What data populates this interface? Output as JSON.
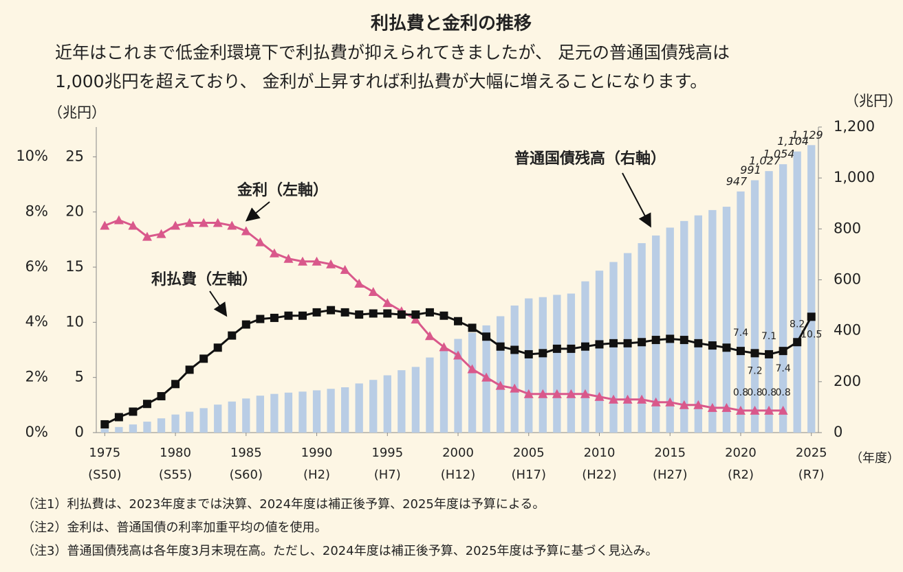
{
  "chart_data": {
    "type": "combo",
    "title": "利払費と金利の推移",
    "subtitle": [
      "近年はこれまで低金利環境下で利払費が抑えられてきましたが、 足元の普通国債残高は",
      "1,000兆円を超えており、 金利が上昇すれば利払費が大幅に増えることになります。"
    ],
    "y_label": "（兆円）",
    "y2_label": "（兆円）",
    "x_label": "（年度）",
    "annotations": [
      "金利（左軸）",
      "利払費（左軸）",
      "普通国債残高（右軸）"
    ],
    "notes": [
      "（注1）利払費は、2023年度までは決算、2024年度は補正後予算、2025年度は予算による。",
      "（注2）金利は、普通国債の利率加重平均の値を使用。",
      "（注3）普通国債残高は各年度3月末現在高。ただし、2024年度は補正後予算、2025年度は予算に基づく見込み。"
    ],
    "x": [
      1975,
      1976,
      1977,
      1978,
      1979,
      1980,
      1981,
      1982,
      1983,
      1984,
      1985,
      1986,
      1987,
      1988,
      1989,
      1990,
      1991,
      1992,
      1993,
      1994,
      1995,
      1996,
      1997,
      1998,
      1999,
      2000,
      2001,
      2002,
      2003,
      2004,
      2005,
      2006,
      2007,
      2008,
      2009,
      2010,
      2011,
      2012,
      2013,
      2014,
      2015,
      2016,
      2017,
      2018,
      2019,
      2020,
      2021,
      2022,
      2023,
      2024,
      2025
    ],
    "xlim": [
      1974.4,
      2025.5
    ],
    "xticks": [
      1975,
      1980,
      1985,
      1990,
      1995,
      2000,
      2005,
      2010,
      2015,
      2020,
      2025
    ],
    "xtick_sublabels": [
      "(S50)",
      "(S55)",
      "(S60)",
      "(H2)",
      "(H7)",
      "(H12)",
      "(H17)",
      "(H22)",
      "(H27)",
      "(R2)",
      "(R7)"
    ],
    "ylim": [
      0,
      27.7
    ],
    "yticks": [
      0,
      5,
      10,
      15,
      20,
      25
    ],
    "y2lim": [
      0,
      1200
    ],
    "y2ticks": [
      0,
      200,
      400,
      600,
      800,
      {
        "value": 1000,
        "label": "1,000"
      },
      {
        "value": 1200,
        "label": "1,200"
      }
    ],
    "y3lim": [
      0,
      11.07
    ],
    "y3ticks": [
      {
        "value": 0,
        "label": "0%"
      },
      {
        "value": 2,
        "label": "2%"
      },
      {
        "value": 4,
        "label": "4%"
      },
      {
        "value": 6,
        "label": "6%"
      },
      {
        "value": 8,
        "label": "8%"
      },
      {
        "value": 10,
        "label": "10%"
      }
    ],
    "series": [
      {
        "name": "普通国債残高（右軸）",
        "kind": "bar",
        "axis": "y2",
        "color": "#b9cde5",
        "values": [
          15,
          22,
          32,
          43,
          56,
          71,
          82,
          96,
          110,
          122,
          134,
          145,
          152,
          157,
          161,
          166,
          172,
          178,
          193,
          207,
          225,
          245,
          258,
          295,
          332,
          368,
          392,
          421,
          457,
          499,
          527,
          532,
          541,
          546,
          594,
          636,
          670,
          705,
          744,
          774,
          805,
          831,
          853,
          874,
          887,
          947,
          991,
          1027,
          1054,
          1104,
          1129
        ],
        "value_labels": [
          null,
          null,
          null,
          null,
          null,
          null,
          null,
          null,
          null,
          null,
          null,
          null,
          null,
          null,
          null,
          null,
          null,
          null,
          null,
          null,
          null,
          null,
          null,
          null,
          null,
          null,
          null,
          null,
          null,
          null,
          null,
          null,
          null,
          null,
          null,
          null,
          null,
          null,
          null,
          null,
          null,
          null,
          null,
          null,
          null,
          "947",
          "991",
          "1,027",
          "1,054",
          "1,104",
          "1,129"
        ]
      },
      {
        "name": "金利（左軸）",
        "kind": "line",
        "axis": "y3",
        "marker": "triangle",
        "color": "#d9588b",
        "values": [
          7.5,
          7.7,
          7.5,
          7.1,
          7.2,
          7.5,
          7.6,
          7.6,
          7.6,
          7.5,
          7.3,
          6.9,
          6.5,
          6.3,
          6.2,
          6.2,
          6.1,
          5.9,
          5.4,
          5.1,
          4.7,
          4.4,
          4.1,
          3.5,
          3.1,
          2.8,
          2.3,
          2.0,
          1.7,
          1.6,
          1.4,
          1.4,
          1.4,
          1.4,
          1.4,
          1.3,
          1.2,
          1.2,
          1.2,
          1.1,
          1.1,
          1.0,
          1.0,
          0.9,
          0.9,
          0.8,
          0.8,
          0.8,
          0.8,
          null,
          null
        ],
        "value_labels": [
          null,
          null,
          null,
          null,
          null,
          null,
          null,
          null,
          null,
          null,
          null,
          null,
          null,
          null,
          null,
          null,
          null,
          null,
          null,
          null,
          null,
          null,
          null,
          null,
          null,
          null,
          null,
          null,
          null,
          null,
          null,
          null,
          null,
          null,
          null,
          null,
          null,
          null,
          null,
          null,
          null,
          null,
          null,
          null,
          null,
          "0.8",
          "0.8",
          "0.8",
          "0.8",
          null,
          null
        ]
      },
      {
        "name": "利払費（左軸）",
        "kind": "line",
        "axis": "y",
        "marker": "square",
        "color": "#111111",
        "values": [
          0.75,
          1.4,
          1.9,
          2.6,
          3.3,
          4.4,
          5.7,
          6.7,
          7.7,
          8.8,
          9.8,
          10.3,
          10.4,
          10.6,
          10.6,
          10.9,
          11.1,
          10.9,
          10.7,
          10.8,
          10.8,
          10.7,
          10.7,
          10.9,
          10.6,
          10.1,
          9.5,
          8.7,
          7.8,
          7.5,
          7.1,
          7.2,
          7.6,
          7.6,
          7.8,
          8.0,
          8.1,
          8.1,
          8.2,
          8.4,
          8.5,
          8.4,
          8.1,
          7.9,
          7.7,
          7.4,
          7.2,
          7.1,
          7.4,
          8.2,
          10.5
        ],
        "value_labels": [
          null,
          null,
          null,
          null,
          null,
          null,
          null,
          null,
          null,
          null,
          null,
          null,
          null,
          null,
          null,
          null,
          null,
          null,
          null,
          null,
          null,
          null,
          null,
          null,
          null,
          null,
          null,
          null,
          null,
          null,
          null,
          null,
          null,
          null,
          null,
          null,
          null,
          null,
          null,
          null,
          null,
          null,
          null,
          null,
          null,
          "7.4",
          "7.2",
          "7.1",
          "7.4",
          "8.2",
          "10.5"
        ]
      }
    ]
  }
}
